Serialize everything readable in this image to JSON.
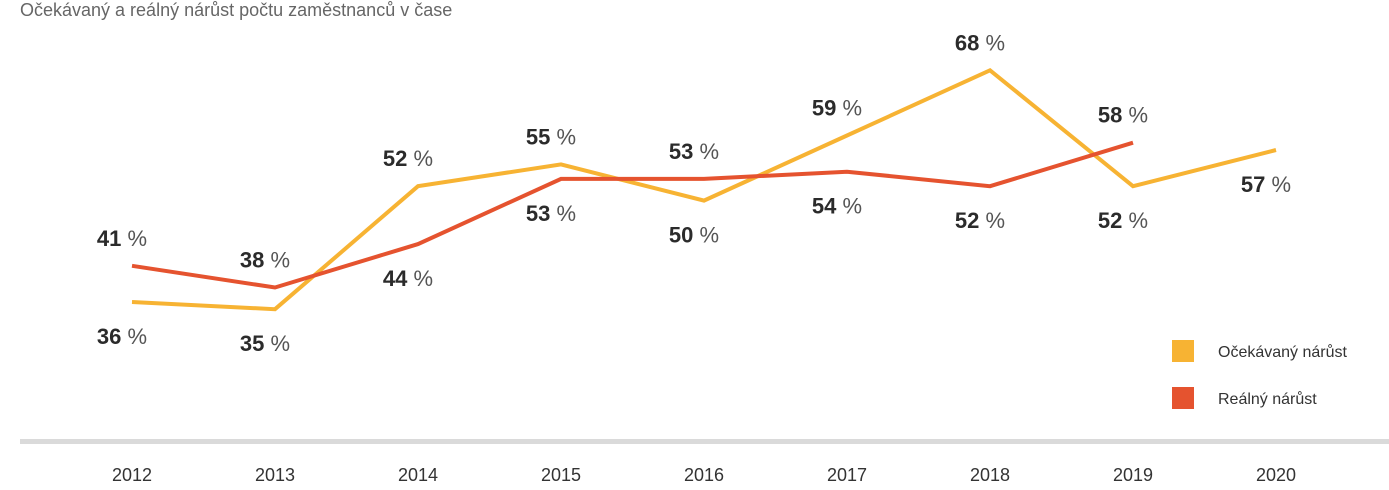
{
  "chart_data": {
    "type": "line",
    "title": "Očekávaný a reálný nárůst počtu zaměstnanců v čase",
    "categories": [
      "2012",
      "2013",
      "2014",
      "2015",
      "2016",
      "2017",
      "2018",
      "2019",
      "2020"
    ],
    "value_suffix": "%",
    "series": [
      {
        "name": "Očekávaný nárůst",
        "color": "#F7B333",
        "values": [
          36,
          35,
          52,
          55,
          50,
          59,
          68,
          52,
          57
        ]
      },
      {
        "name": "Reálný nárůst",
        "color": "#E5532F",
        "values": [
          41,
          38,
          44,
          53,
          53,
          54,
          52,
          58,
          null
        ]
      }
    ],
    "legend_position": "bottom-right",
    "grid": false,
    "ylim": [
      20,
      75
    ]
  },
  "colors": {
    "baseline": "#DADADA",
    "label_bold": "#2B2B2B",
    "label_light": "#555555",
    "title": "#666666"
  }
}
